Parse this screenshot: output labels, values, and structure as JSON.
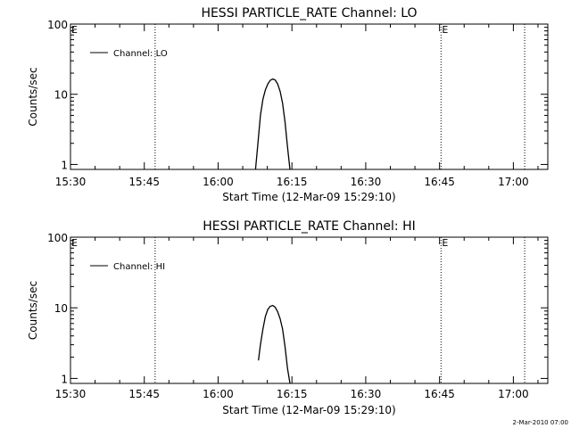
{
  "colors": {
    "background": "#ffffff",
    "foreground": "#000000"
  },
  "footer": {
    "timestamp": "2-Mar-2010 07:00"
  },
  "chart_data": [
    {
      "type": "line",
      "title": "HESSI PARTICLE_RATE Channel: LO",
      "xlabel": "Start Time (12-Mar-09 15:29:10)",
      "ylabel": "Counts/sec",
      "x_tick_labels": [
        "15:30",
        "15:45",
        "16:00",
        "16:15",
        "16:30",
        "16:45",
        "17:00"
      ],
      "y_tick_labels": [
        "1",
        "10",
        "100"
      ],
      "x_ticks_minutes": [
        0,
        15,
        30,
        45,
        60,
        75,
        90
      ],
      "xlim_minutes_since_1530": [
        0,
        97
      ],
      "ylim": [
        0.85,
        100
      ],
      "yscale": "log",
      "legend": {
        "label": "Channel: LO",
        "position": "top-left"
      },
      "vertical_markers": [
        {
          "label": "",
          "x_minutes": 17.2
        },
        {
          "label": "E",
          "x_minutes": 75.3
        },
        {
          "label": "",
          "x_minutes": 92.3
        }
      ],
      "axis_markers": [
        {
          "label": "E",
          "position": "left-top"
        }
      ],
      "series": [
        {
          "name": "Channel: LO",
          "x_minutes": [
            37.6,
            38.1,
            38.6,
            39.1,
            39.6,
            40.1,
            40.6,
            41.1,
            41.6,
            42.1,
            42.6,
            43.1,
            43.6,
            44.1,
            44.6
          ],
          "values": [
            0.85,
            2.0,
            5.0,
            8.5,
            11.5,
            14.0,
            15.8,
            16.5,
            16.0,
            14.0,
            11.0,
            7.5,
            4.0,
            1.8,
            0.85
          ]
        }
      ]
    },
    {
      "type": "line",
      "title": "HESSI PARTICLE_RATE Channel: HI",
      "xlabel": "Start Time (12-Mar-09 15:29:10)",
      "ylabel": "Counts/sec",
      "x_tick_labels": [
        "15:30",
        "15:45",
        "16:00",
        "16:15",
        "16:30",
        "16:45",
        "17:00"
      ],
      "y_tick_labels": [
        "1",
        "10",
        "100"
      ],
      "x_ticks_minutes": [
        0,
        15,
        30,
        45,
        60,
        75,
        90
      ],
      "xlim_minutes_since_1530": [
        0,
        97
      ],
      "ylim": [
        0.85,
        100
      ],
      "yscale": "log",
      "legend": {
        "label": "Channel: HI",
        "position": "top-left"
      },
      "vertical_markers": [
        {
          "label": "",
          "x_minutes": 17.2
        },
        {
          "label": "E",
          "x_minutes": 75.3
        },
        {
          "label": "",
          "x_minutes": 92.3
        }
      ],
      "axis_markers": [
        {
          "label": "E",
          "position": "left-top"
        }
      ],
      "series": [
        {
          "name": "Channel: HI",
          "x_minutes": [
            38.2,
            38.6,
            39.1,
            39.6,
            40.1,
            40.6,
            41.1,
            41.6,
            42.1,
            42.6,
            43.1,
            43.6,
            44.1,
            44.6
          ],
          "values": [
            1.8,
            3.0,
            5.0,
            7.5,
            9.5,
            10.5,
            10.8,
            10.2,
            8.8,
            7.0,
            5.0,
            2.8,
            1.4,
            0.85
          ]
        }
      ]
    }
  ]
}
